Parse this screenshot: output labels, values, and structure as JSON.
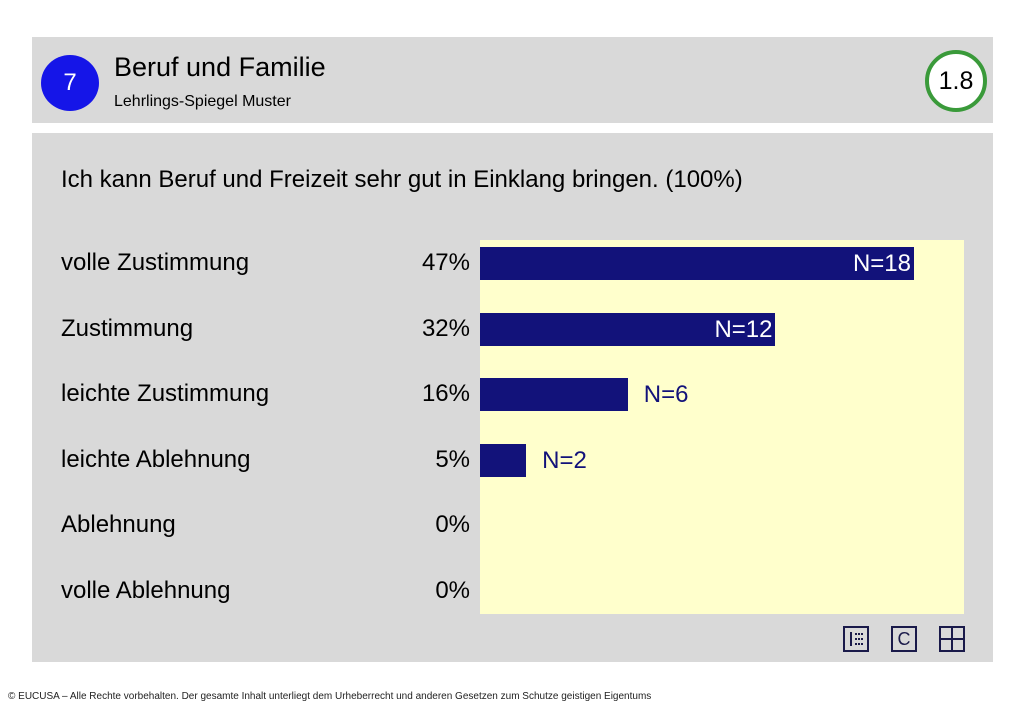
{
  "header": {
    "section_number": "7",
    "title": "Beruf und Familie",
    "subtitle": "Lehrlings-Spiegel Muster",
    "page_number": "1.8"
  },
  "question": "Ich kann Beruf und Freizeit sehr gut in Einklang bringen. (100%)",
  "chart_data": {
    "type": "bar",
    "orientation": "horizontal",
    "title": "Ich kann Beruf und Freizeit sehr gut in Einklang bringen. (100%)",
    "categories": [
      "volle Zustimmung",
      "Zustimmung",
      "leichte Zustimmung",
      "leichte Ablehnung",
      "Ablehnung",
      "volle Ablehnung"
    ],
    "percent_labels": [
      "47%",
      "32%",
      "16%",
      "5%",
      "0%",
      "0%"
    ],
    "values": [
      47,
      32,
      16,
      5,
      0,
      0
    ],
    "counts": [
      18,
      12,
      6,
      2,
      0,
      0
    ],
    "n_labels": [
      "N=18",
      "N=12",
      "N=6",
      "N=2",
      "",
      ""
    ],
    "xlim": [
      0,
      50
    ],
    "grid": false,
    "legend": "none",
    "colors": {
      "bar": "#12127a",
      "plot_background": "#ffffcc"
    }
  },
  "toolbar": {
    "icons": [
      "list-icon",
      "c-icon",
      "grid-icon"
    ],
    "c_label": "C"
  },
  "footer": "© EUCUSA – Alle Rechte vorbehalten. Der gesamte Inhalt unterliegt dem Urheberrecht und anderen Gesetzen zum Schutze geistigen Eigentums",
  "colors": {
    "section_circle": "#1515e8",
    "page_badge_border": "#3a9a3a",
    "panel_background": "#d9d9d9"
  }
}
